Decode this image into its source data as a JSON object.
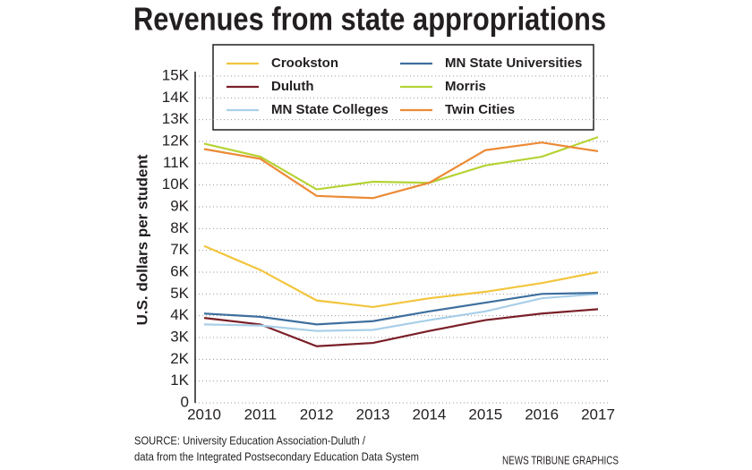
{
  "chart_data": {
    "type": "line",
    "title": "Revenues from state appropriations",
    "y_label": "U.S. dollars per student",
    "categories": [
      "2010",
      "2011",
      "2012",
      "2013",
      "2014",
      "2015",
      "2016",
      "2017"
    ],
    "series": [
      {
        "name": "Crookston",
        "color": "#f2c53d",
        "values": [
          7200,
          6100,
          4700,
          4400,
          4800,
          5100,
          5500,
          6000
        ]
      },
      {
        "name": "Duluth",
        "color": "#7a1f28",
        "values": [
          3900,
          3600,
          2600,
          2750,
          3300,
          3800,
          4100,
          4300
        ]
      },
      {
        "name": "MN State Colleges",
        "color": "#a8cfe8",
        "values": [
          3600,
          3550,
          3300,
          3350,
          3800,
          4200,
          4800,
          5000
        ]
      },
      {
        "name": "MN State Universities",
        "color": "#3e6f9e",
        "values": [
          4100,
          3950,
          3600,
          3750,
          4200,
          4600,
          5000,
          5050
        ]
      },
      {
        "name": "Morris",
        "color": "#b5d334",
        "values": [
          11900,
          11300,
          9800,
          10150,
          10100,
          10900,
          11300,
          12200
        ]
      },
      {
        "name": "Twin Cities",
        "color": "#ec8a35",
        "values": [
          11650,
          11200,
          9500,
          9400,
          10100,
          11600,
          11950,
          11550
        ]
      }
    ],
    "ylim": [
      0,
      15000
    ],
    "yticks": [
      0,
      {
        "value": 1000,
        "label": "1K"
      },
      {
        "value": 2000,
        "label": "2K"
      },
      {
        "value": 3000,
        "label": "3K"
      },
      {
        "value": 4000,
        "label": "4K"
      },
      {
        "value": 5000,
        "label": "5K"
      },
      {
        "value": 6000,
        "label": "6K"
      },
      {
        "value": 7000,
        "label": "7K"
      },
      {
        "value": 8000,
        "label": "8K"
      },
      {
        "value": 9000,
        "label": "9K"
      },
      {
        "value": 10000,
        "label": "10K"
      },
      {
        "value": 11000,
        "label": "11K"
      },
      {
        "value": 12000,
        "label": "12K"
      },
      {
        "value": 13000,
        "label": "13K"
      },
      {
        "value": 14000,
        "label": "14K"
      },
      {
        "value": 15000,
        "label": "15K"
      }
    ],
    "grid": true,
    "source": [
      "SOURCE: University Education Association-Duluth /",
      "data from the Integrated Postsecondary Education Data System"
    ],
    "credit": "NEWS TRIBUNE GRAPHICS"
  }
}
